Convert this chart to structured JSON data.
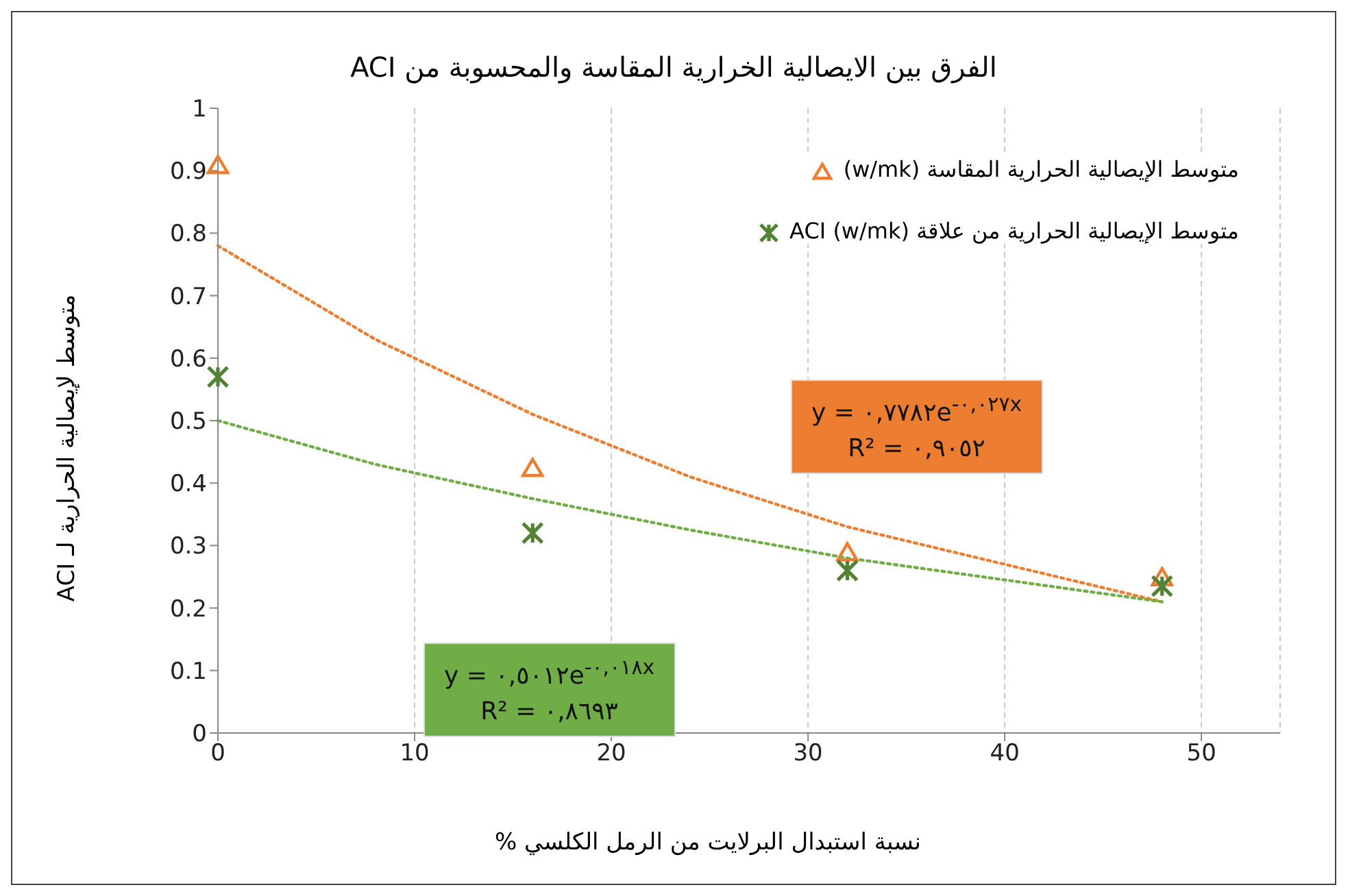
{
  "chart_data": {
    "type": "scatter",
    "title": "الفرق بين الايصالية الخرارية المقاسة والمحسوبة من ACI",
    "xlabel": "نسبة استبدال البرلايت من الرمل الكلسي %",
    "ylabel": "متوسط لإيصالية الحرارية لـ ACI",
    "series": [
      {
        "name": "متوسط الإيصالية الحرارية المقاسة (w/mk)",
        "color": "#ed7d31",
        "marker": "triangle",
        "x": [
          0,
          16,
          32,
          48
        ],
        "values": [
          0.91,
          0.425,
          0.29,
          0.25
        ]
      },
      {
        "name": "متوسط الإيصالية الحرارية من علاقة ACI (w/mk)",
        "color": "#548235",
        "marker": "cross",
        "x": [
          0,
          16,
          32,
          48
        ],
        "values": [
          0.57,
          0.32,
          0.26,
          0.235
        ]
      },
      {
        "type": "line",
        "color": "#ed7d31",
        "line_style": "dotted",
        "marker": "none",
        "x": [
          0,
          8,
          16,
          24,
          32,
          40,
          48
        ],
        "values": [
          0.78,
          0.63,
          0.51,
          0.41,
          0.33,
          0.27,
          0.21
        ]
      },
      {
        "type": "line",
        "color": "#70ad47",
        "line_style": "dotted",
        "marker": "none",
        "x": [
          0,
          8,
          16,
          24,
          32,
          40,
          48
        ],
        "values": [
          0.5,
          0.43,
          0.375,
          0.325,
          0.28,
          0.245,
          0.21
        ]
      }
    ],
    "annotations": [
      "y = ٠,٧٧٨٢e$^{-٠,٠٢٧x}$\nR² = ٠,٩٠٥٢",
      "y = ٠,٥٠١٢e$^{-٠,٠١٨x}$\nR² = ٠,٨٦٩٣"
    ],
    "xlim": [
      0,
      54
    ],
    "xticks": [
      0,
      10,
      20,
      30,
      40,
      50
    ],
    "ylim": [
      0,
      1
    ],
    "yticks": [
      0,
      0.1,
      0.2,
      0.3,
      0.4,
      0.5,
      0.6,
      0.7,
      0.8,
      0.9,
      1
    ],
    "grid": "x",
    "legend": "top right"
  }
}
